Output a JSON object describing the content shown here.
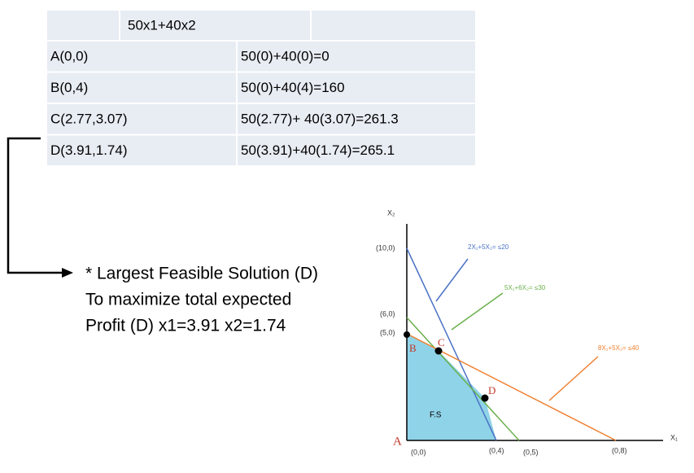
{
  "table": {
    "header": "50x1+40x2",
    "rows": [
      [
        "A(0,0)",
        "50(0)+40(0)=0"
      ],
      [
        "B(0,4)",
        "50(0)+40(4)=160"
      ],
      [
        "C(2.77,3.07)",
        "50(2.77)+ 40(3.07)=261.3"
      ],
      [
        "D(3.91,1.74)",
        "50(3.91)+40(1.74)=265.1"
      ]
    ]
  },
  "note": [
    "* Largest Feasible Solution (D)",
    "To maximize total expected",
    "Profit (D) x1=3.91  x2=1.74"
  ],
  "graph": {
    "y_axis": "X₂",
    "x_axis": "X₁",
    "y_labels": [
      "(10,0)",
      "(6,0)",
      "(5,0)"
    ],
    "x_labels": [
      "(0,0)",
      "(0,4)",
      "(0,5)",
      "(0,8)"
    ],
    "constraints": [
      "2X₁+5X₂= ≤20",
      "5X₁+6X₂= ≤30",
      "8X₁+5X₂= ≤40"
    ],
    "points": [
      "A",
      "B",
      "C",
      "D"
    ],
    "region": "F.S"
  }
}
